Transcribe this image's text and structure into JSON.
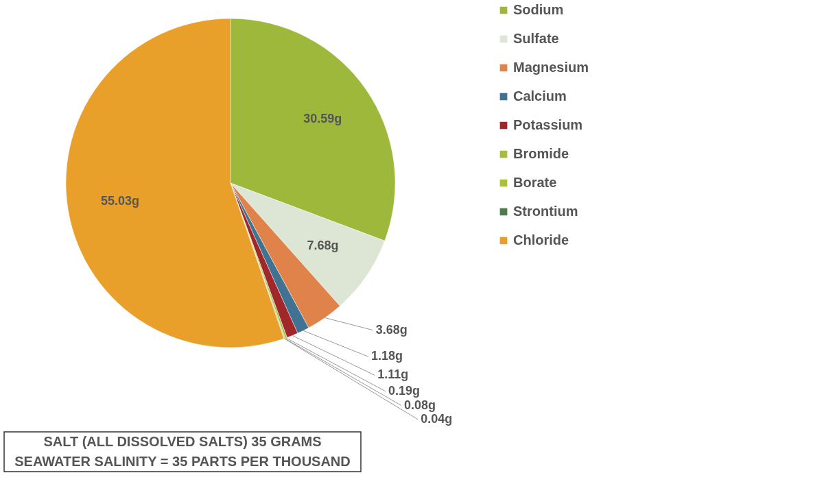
{
  "chart_data": {
    "type": "pie",
    "categories": [
      "Sodium",
      "Sulfate",
      "Magnesium",
      "Calcium",
      "Potassium",
      "Bromide",
      "Borate",
      "Strontium",
      "Chloride"
    ],
    "values": [
      30.59,
      7.68,
      3.68,
      1.18,
      1.11,
      0.19,
      0.08,
      0.04,
      55.03
    ],
    "value_labels": [
      "30.59g",
      "7.68g",
      "3.68g",
      "1.18g",
      "1.11g",
      "0.19g",
      "0.08g",
      "0.04g",
      "55.03g"
    ],
    "colors": [
      "#9db83a",
      "#dde6d5",
      "#e0834a",
      "#3f7391",
      "#a0282a",
      "#a5be3d",
      "#a9c232",
      "#4f7a4a",
      "#e8a02a"
    ],
    "legend": "right",
    "annotations": [
      "SALT (ALL DISSOLVED SALTS) 35 GRAMS",
      "SEAWATER SALINITY = 35 PARTS PER THOUSAND"
    ]
  }
}
